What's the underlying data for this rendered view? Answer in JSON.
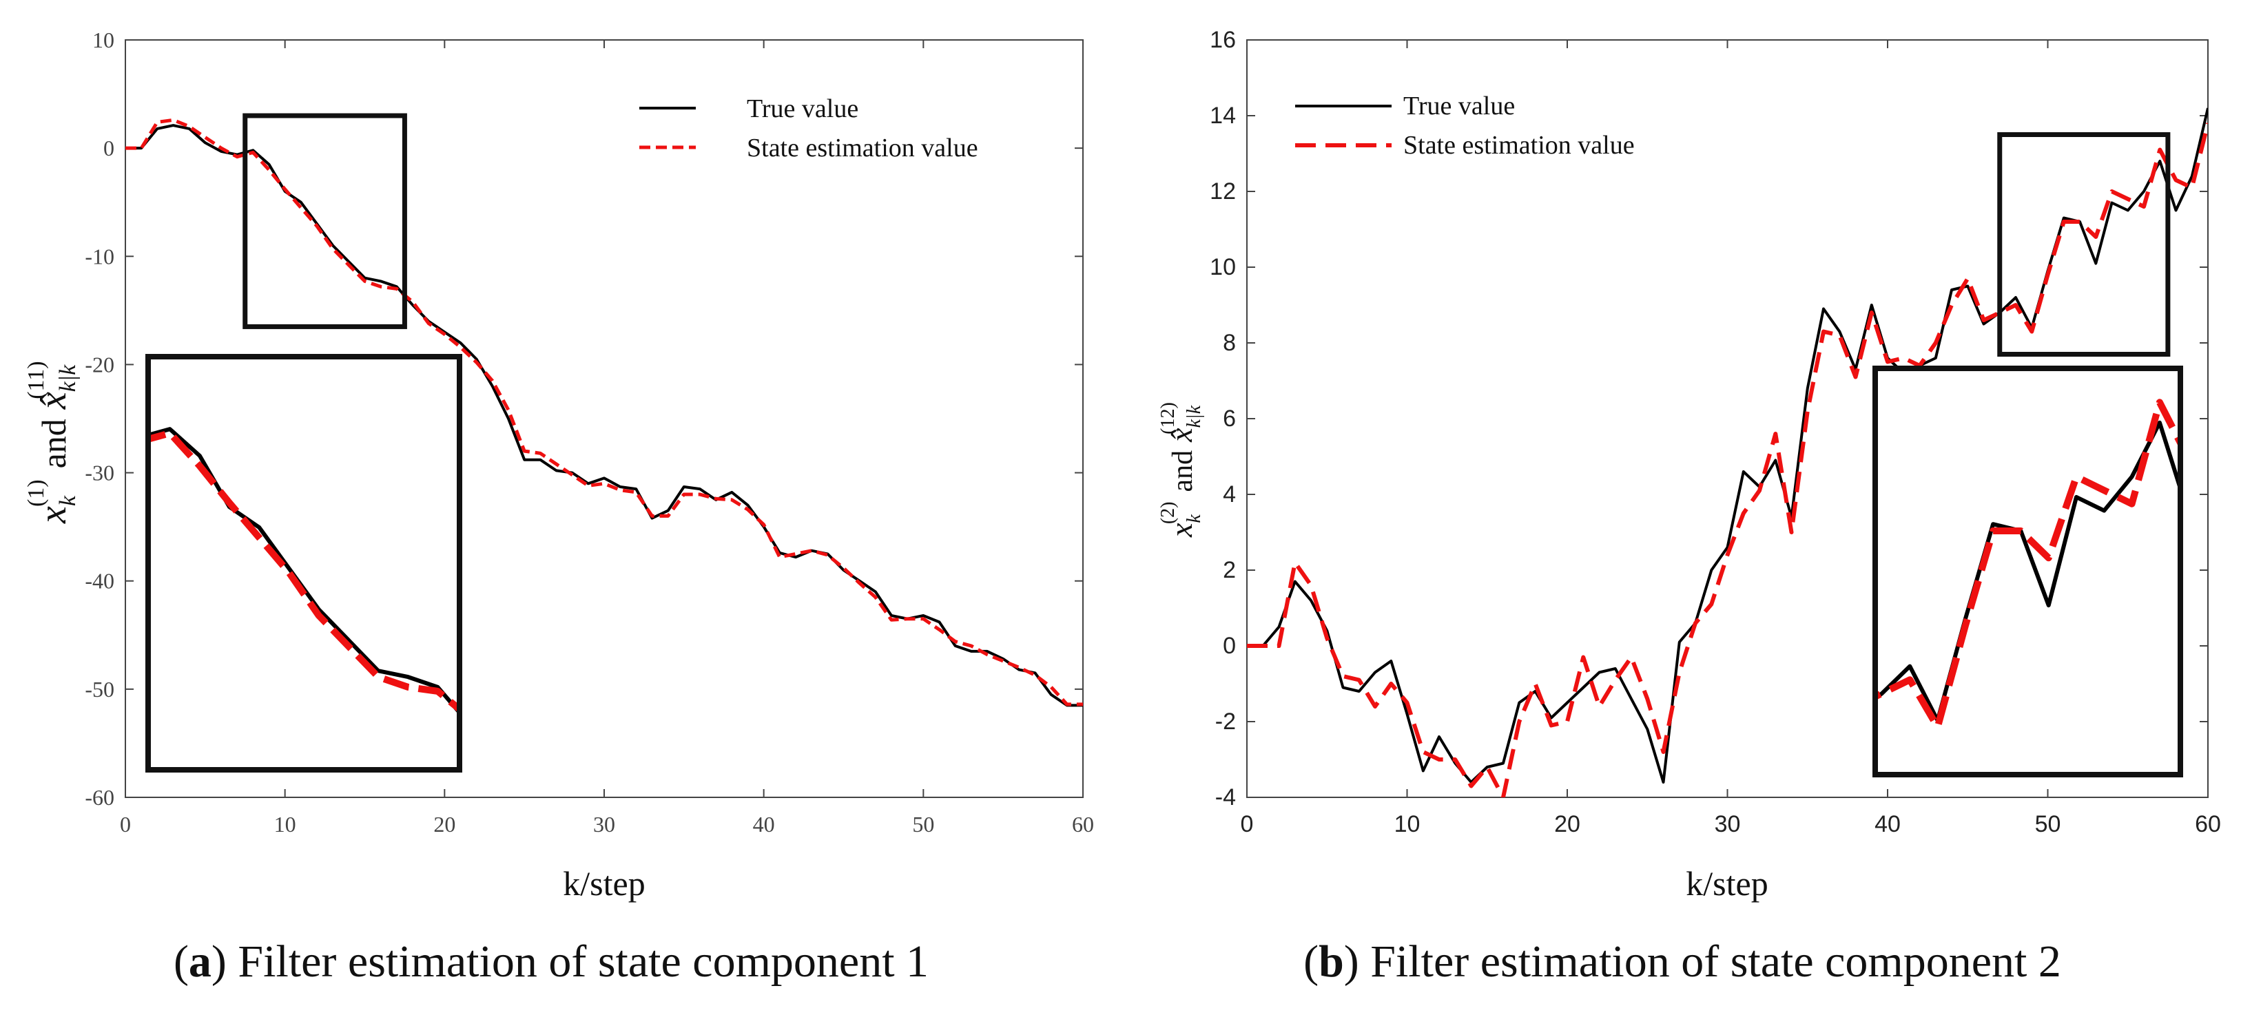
{
  "chart_data": [
    {
      "panel": "a",
      "type": "line",
      "caption_letter": "a",
      "caption_text": "Filter estimation of state component 1",
      "xlabel": "k/step",
      "ylabel_main": "x",
      "ylabel_sub": "k",
      "ylabel_sup": "(1)",
      "ylabel_and": "and",
      "ylabel_hat": "x̂",
      "ylabel_hat_sub": "k|k",
      "ylabel_hat_sup": "(11)",
      "xlim": [
        0,
        60
      ],
      "ylim": [
        -60,
        10
      ],
      "xticks": [
        "0",
        "10",
        "20",
        "30",
        "40",
        "50",
        "60"
      ],
      "yticks": [
        "10",
        "0",
        "-10",
        "-20",
        "-30",
        "-40",
        "-50",
        "-60"
      ],
      "legend": [
        "True value",
        "State estimation value"
      ],
      "colors": {
        "true": "#000000",
        "estimate": "#ee1111"
      },
      "inset_region": {
        "x": [
          7.5,
          17.5
        ],
        "y": [
          -16.5,
          3
        ]
      },
      "series": [
        {
          "name": "True value",
          "x": [
            0,
            1,
            2,
            3,
            4,
            5,
            6,
            7,
            8,
            9,
            10,
            11,
            12,
            13,
            14,
            15,
            16,
            17,
            18,
            19,
            20,
            21,
            22,
            23,
            24,
            25,
            26,
            27,
            28,
            29,
            30,
            31,
            32,
            33,
            34,
            35,
            36,
            37,
            38,
            39,
            40,
            41,
            42,
            43,
            44,
            45,
            46,
            47,
            48,
            49,
            50,
            51,
            52,
            53,
            54,
            55,
            56,
            57,
            58,
            59,
            60
          ],
          "values": [
            0,
            0,
            1.8,
            2.1,
            1.8,
            0.5,
            -0.3,
            -0.6,
            -0.2,
            -1.5,
            -4,
            -5,
            -7,
            -9,
            -10.5,
            -12,
            -12.3,
            -12.8,
            -14.5,
            -16,
            -17,
            -18,
            -19.5,
            -22,
            -25,
            -28.8,
            -28.8,
            -29.8,
            -30,
            -31,
            -30.5,
            -31.3,
            -31.5,
            -34.2,
            -33.5,
            -31.3,
            -31.5,
            -32.5,
            -31.8,
            -33,
            -35,
            -37.4,
            -37.8,
            -37.2,
            -37.5,
            -39,
            -40,
            -41,
            -43.2,
            -43.5,
            -43.2,
            -43.8,
            -46,
            -46.5,
            -46.5,
            -47.2,
            -48.2,
            -48.5,
            -50.5,
            -51.5,
            -51.5
          ]
        },
        {
          "name": "State estimation value",
          "x": [
            0,
            1,
            2,
            3,
            4,
            5,
            6,
            7,
            8,
            9,
            10,
            11,
            12,
            13,
            14,
            15,
            16,
            17,
            18,
            19,
            20,
            21,
            22,
            23,
            24,
            25,
            26,
            27,
            28,
            29,
            30,
            31,
            32,
            33,
            34,
            35,
            36,
            37,
            38,
            39,
            40,
            41,
            42,
            43,
            44,
            45,
            46,
            47,
            48,
            49,
            50,
            51,
            52,
            53,
            54,
            55,
            56,
            57,
            58,
            59,
            60
          ],
          "values": [
            0,
            0,
            2.4,
            2.6,
            2,
            1,
            0,
            -0.8,
            -0.4,
            -2,
            -3.8,
            -5.5,
            -7.2,
            -9.3,
            -10.8,
            -12.3,
            -12.8,
            -13,
            -14.2,
            -16.2,
            -17.2,
            -18.4,
            -19.8,
            -21.5,
            -24.2,
            -28,
            -28.2,
            -29.2,
            -30.2,
            -31.2,
            -31,
            -31.6,
            -31.8,
            -34,
            -34,
            -32,
            -32,
            -32.4,
            -32.5,
            -33.4,
            -34.8,
            -37.8,
            -37.5,
            -37.2,
            -37.6,
            -38.8,
            -40.2,
            -41.5,
            -43.6,
            -43.5,
            -43.5,
            -44.5,
            -45.6,
            -46,
            -46.8,
            -47.4,
            -48,
            -48.7,
            -49.8,
            -51.4,
            -51.4
          ]
        }
      ]
    },
    {
      "panel": "b",
      "type": "line",
      "caption_letter": "b",
      "caption_text": "Filter estimation of state component 2",
      "xlabel": "k/step",
      "ylabel_main": "x",
      "ylabel_sub": "k",
      "ylabel_sup": "(2)",
      "ylabel_and": "and",
      "ylabel_hat": "x̂",
      "ylabel_hat_sub": "k|k",
      "ylabel_hat_sup": "(12)",
      "xlim": [
        0,
        60
      ],
      "ylim": [
        -4,
        16
      ],
      "xticks": [
        "0",
        "10",
        "20",
        "30",
        "40",
        "50",
        "60"
      ],
      "yticks": [
        "16",
        "14",
        "12",
        "10",
        "8",
        "6",
        "4",
        "2",
        "0",
        "-2",
        "-4"
      ],
      "legend": [
        "True value",
        "State estimation value"
      ],
      "colors": {
        "true": "#000000",
        "estimate": "#ee1111"
      },
      "inset_region": {
        "x": [
          47,
          57.5
        ],
        "y": [
          7.7,
          13.5
        ]
      },
      "series": [
        {
          "name": "True value",
          "x": [
            0,
            1,
            2,
            3,
            4,
            5,
            6,
            7,
            8,
            9,
            10,
            11,
            12,
            13,
            14,
            15,
            16,
            17,
            18,
            19,
            20,
            21,
            22,
            23,
            24,
            25,
            26,
            27,
            28,
            29,
            30,
            31,
            32,
            33,
            34,
            35,
            36,
            37,
            38,
            39,
            40,
            41,
            42,
            43,
            44,
            45,
            46,
            47,
            48,
            49,
            50,
            51,
            52,
            53,
            54,
            55,
            56,
            57,
            58,
            59,
            60
          ],
          "values": [
            0,
            0,
            0.5,
            1.7,
            1.2,
            0.4,
            -1.1,
            -1.2,
            -0.7,
            -0.4,
            -1.8,
            -3.3,
            -2.4,
            -3.1,
            -3.6,
            -3.2,
            -3.1,
            -1.5,
            -1.2,
            -1.9,
            -1.5,
            -1.1,
            -0.7,
            -0.6,
            -1.4,
            -2.2,
            -3.6,
            0.1,
            0.6,
            2,
            2.6,
            4.6,
            4.2,
            4.9,
            3.4,
            6.8,
            8.9,
            8.3,
            7.3,
            9,
            7.6,
            7.2,
            7.4,
            7.6,
            9.4,
            9.5,
            8.5,
            8.8,
            9.2,
            8.4,
            9.9,
            11.3,
            11.2,
            10.1,
            11.7,
            11.5,
            12,
            12.8,
            11.5,
            12.4,
            14.2
          ]
        },
        {
          "name": "State estimation value",
          "x": [
            0,
            1,
            2,
            3,
            4,
            5,
            6,
            7,
            8,
            9,
            10,
            11,
            12,
            13,
            14,
            15,
            16,
            17,
            18,
            19,
            20,
            21,
            22,
            23,
            24,
            25,
            26,
            27,
            28,
            29,
            30,
            31,
            32,
            33,
            34,
            35,
            36,
            37,
            38,
            39,
            40,
            41,
            42,
            43,
            44,
            45,
            46,
            47,
            48,
            49,
            50,
            51,
            52,
            53,
            54,
            55,
            56,
            57,
            58,
            59,
            60
          ],
          "values": [
            0,
            0,
            0,
            2.2,
            1.6,
            0.2,
            -0.8,
            -0.9,
            -1.6,
            -1,
            -1.5,
            -2.8,
            -3,
            -3,
            -3.7,
            -3.2,
            -4,
            -2,
            -1,
            -2.1,
            -2,
            -0.3,
            -1.6,
            -0.9,
            -0.3,
            -1.4,
            -2.8,
            -0.7,
            0.6,
            1.1,
            2.4,
            3.5,
            4.1,
            5.6,
            3,
            6.2,
            8.3,
            8.2,
            7.1,
            8.8,
            7.5,
            7.6,
            7.4,
            8,
            9,
            9.7,
            8.6,
            8.8,
            9,
            8.3,
            9.8,
            11.2,
            11.2,
            10.8,
            12,
            11.8,
            11.6,
            13.1,
            12.3,
            12.1,
            13.8
          ]
        }
      ]
    }
  ]
}
